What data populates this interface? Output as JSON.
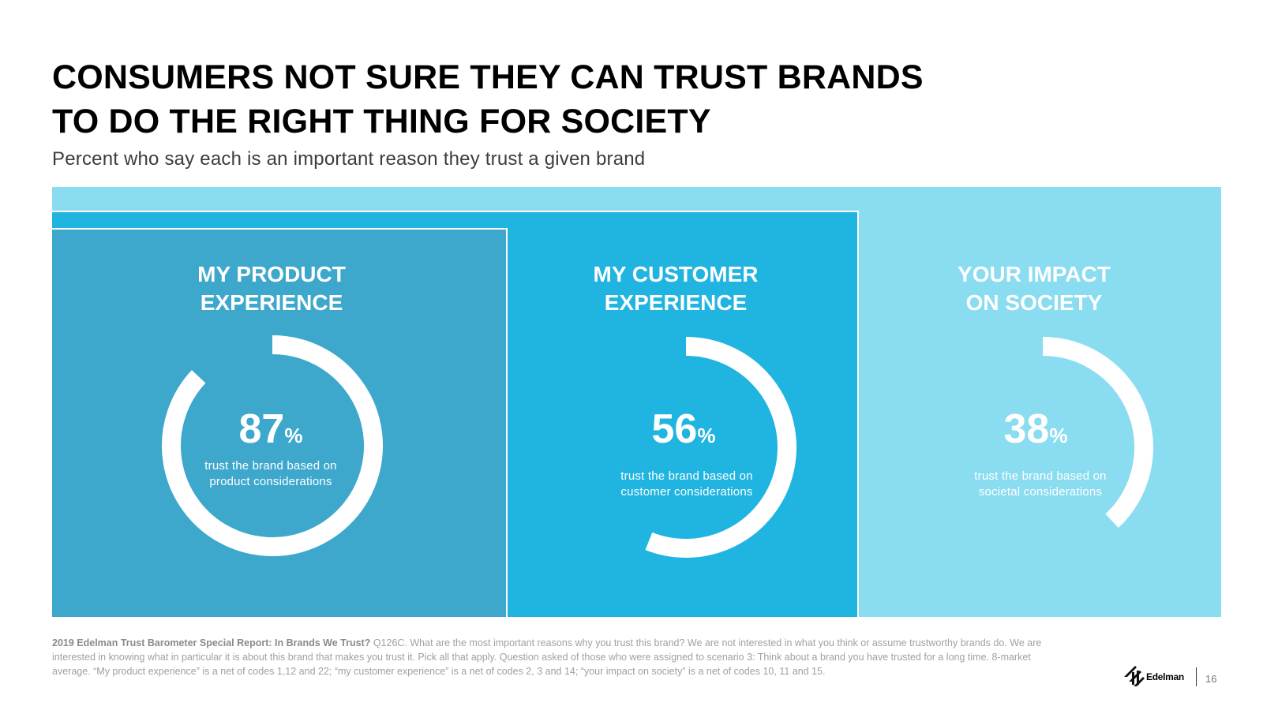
{
  "title": {
    "line1": "CONSUMERS NOT SURE THEY CAN TRUST BRANDS",
    "line2": "TO DO THE RIGHT THING FOR SOCIETY"
  },
  "subtitle": "Percent who say each is an important reason they trust a given brand",
  "colors": {
    "panel_light": "#8adcf0",
    "panel_mid": "#20b4e0",
    "panel_dark": "#3ea8cc",
    "ring": "#ffffff"
  },
  "sections": [
    {
      "title_line1": "MY PRODUCT",
      "title_line2": "EXPERIENCE",
      "value": 87,
      "value_text": "87",
      "unit": "%",
      "desc_line1": "trust the brand based on",
      "desc_line2": "product considerations"
    },
    {
      "title_line1": "MY CUSTOMER",
      "title_line2": "EXPERIENCE",
      "value": 56,
      "value_text": "56",
      "unit": "%",
      "desc_line1": "trust the brand based on",
      "desc_line2": "customer considerations"
    },
    {
      "title_line1": "YOUR IMPACT",
      "title_line2": "ON SOCIETY",
      "value": 38,
      "value_text": "38",
      "unit": "%",
      "desc_line1": "trust the brand based on",
      "desc_line2": "societal considerations"
    }
  ],
  "footnote": {
    "source": "2019 Edelman Trust Barometer Special Report: In Brands We Trust?",
    "text": " Q126C. What are the most important reasons why you trust this brand? We are not interested in what you think or assume trustworthy brands do. We are interested in knowing what in particular it is about this brand that makes you trust it. Pick all that apply. Question asked of those who were assigned to scenario 3: Think about a brand you have trusted for a long time. 8-market average. “My product experience” is a net of codes 1,12 and 22; “my customer experience” is a net of codes 2, 3 and 14; “your impact on society” is a net of codes 10, 11 and 15."
  },
  "logo": {
    "text": "Edelman",
    "icon": "edelman-logo-icon"
  },
  "page_number": "16"
}
